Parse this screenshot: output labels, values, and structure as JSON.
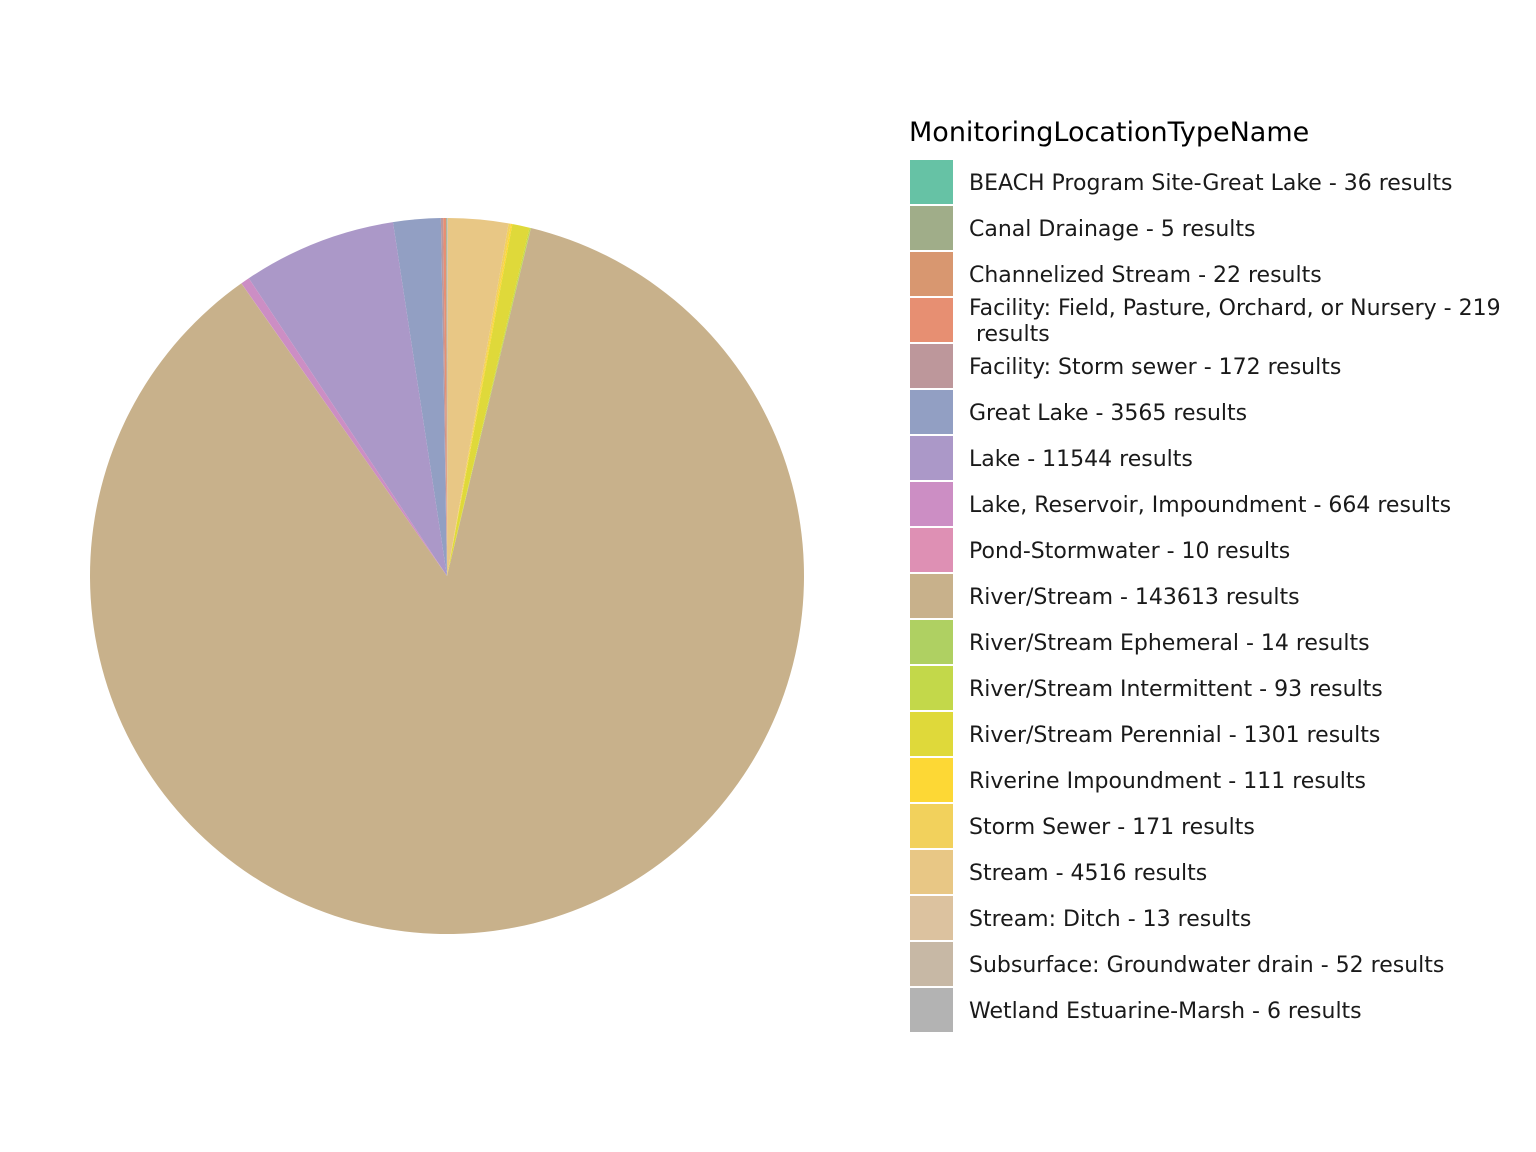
{
  "chart_data": {
    "type": "pie",
    "legend_title": "MonitoringLocationTypeName",
    "legend_position": "right",
    "slices": [
      {
        "label": "BEACH Program Site-Great Lake - 36 results",
        "value": 36,
        "color": "#66C2A5"
      },
      {
        "label": "Canal Drainage - 5 results",
        "value": 5,
        "color": "#A0AD89"
      },
      {
        "label": "Channelized Stream - 22 results",
        "value": 22,
        "color": "#D89770"
      },
      {
        "label": "Facility: Field, Pasture, Orchard, or Nursery - 219\n results",
        "value": 219,
        "color": "#E78F72"
      },
      {
        "label": "Facility: Storm sewer - 172 results",
        "value": 172,
        "color": "#BD979B"
      },
      {
        "label": "Great Lake - 3565 results",
        "value": 3565,
        "color": "#929FC3"
      },
      {
        "label": "Lake - 11544 results",
        "value": 11544,
        "color": "#AB98C8"
      },
      {
        "label": "Lake, Reservoir, Impoundment - 664 results",
        "value": 664,
        "color": "#CC8EC4"
      },
      {
        "label": "Pond-Stormwater - 10 results",
        "value": 10,
        "color": "#DE90B4"
      },
      {
        "label": "River/Stream - 143613 results",
        "value": 143613,
        "color": "#C8B18B"
      },
      {
        "label": "River/Stream Ephemeral - 14 results",
        "value": 14,
        "color": "#AFD062"
      },
      {
        "label": "River/Stream Intermittent - 93 results",
        "value": 93,
        "color": "#C3D84A"
      },
      {
        "label": "River/Stream Perennial - 1301 results",
        "value": 1301,
        "color": "#DFD93A"
      },
      {
        "label": "Riverine Impoundment - 111 results",
        "value": 111,
        "color": "#FDD835"
      },
      {
        "label": "Storm Sewer - 171 results",
        "value": 171,
        "color": "#F2D15C"
      },
      {
        "label": "Stream - 4516 results",
        "value": 4516,
        "color": "#E8C785"
      },
      {
        "label": "Stream: Ditch - 13 results",
        "value": 13,
        "color": "#DCC29F"
      },
      {
        "label": "Subsurface: Groundwater drain - 52 results",
        "value": 52,
        "color": "#C7B8A5"
      },
      {
        "label": "Wetland Estuarine-Marsh - 6 results",
        "value": 6,
        "color": "#B3B3B3"
      }
    ]
  }
}
